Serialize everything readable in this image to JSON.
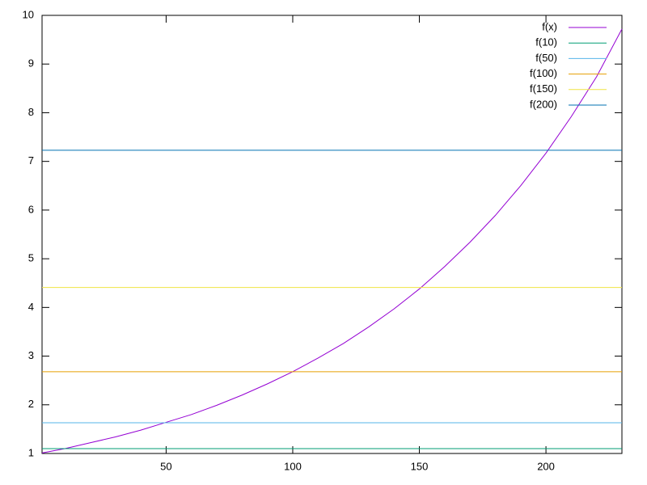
{
  "chart_data": {
    "type": "line",
    "xlim": [
      1,
      230
    ],
    "ylim": [
      1,
      10
    ],
    "xticks": [
      50,
      100,
      150,
      200
    ],
    "yticks": [
      1,
      2,
      3,
      4,
      5,
      6,
      7,
      8,
      9,
      10
    ],
    "legend": "top-right",
    "series": [
      {
        "name": "f(x)",
        "color": "#9400d3",
        "x": [
          1,
          10,
          20,
          30,
          40,
          50,
          60,
          70,
          80,
          90,
          100,
          110,
          120,
          130,
          140,
          150,
          160,
          170,
          180,
          190,
          200,
          210,
          220,
          230
        ],
        "values": [
          1.01,
          1.1,
          1.22,
          1.34,
          1.48,
          1.64,
          1.8,
          1.99,
          2.2,
          2.43,
          2.68,
          2.96,
          3.26,
          3.6,
          3.97,
          4.38,
          4.84,
          5.34,
          5.89,
          6.5,
          7.17,
          7.92,
          8.74,
          9.72
        ]
      },
      {
        "name": "f(10)",
        "color": "#009e73",
        "x": [
          1,
          230
        ],
        "values": [
          1.1,
          1.1
        ]
      },
      {
        "name": "f(50)",
        "color": "#56b4e9",
        "x": [
          1,
          230
        ],
        "values": [
          1.63,
          1.63
        ]
      },
      {
        "name": "f(100)",
        "color": "#e69f00",
        "x": [
          1,
          230
        ],
        "values": [
          2.68,
          2.68
        ]
      },
      {
        "name": "f(150)",
        "color": "#f0e442",
        "x": [
          1,
          230
        ],
        "values": [
          4.41,
          4.41
        ]
      },
      {
        "name": "f(200)",
        "color": "#0072b2",
        "x": [
          1,
          230
        ],
        "values": [
          7.23,
          7.23
        ]
      }
    ]
  }
}
